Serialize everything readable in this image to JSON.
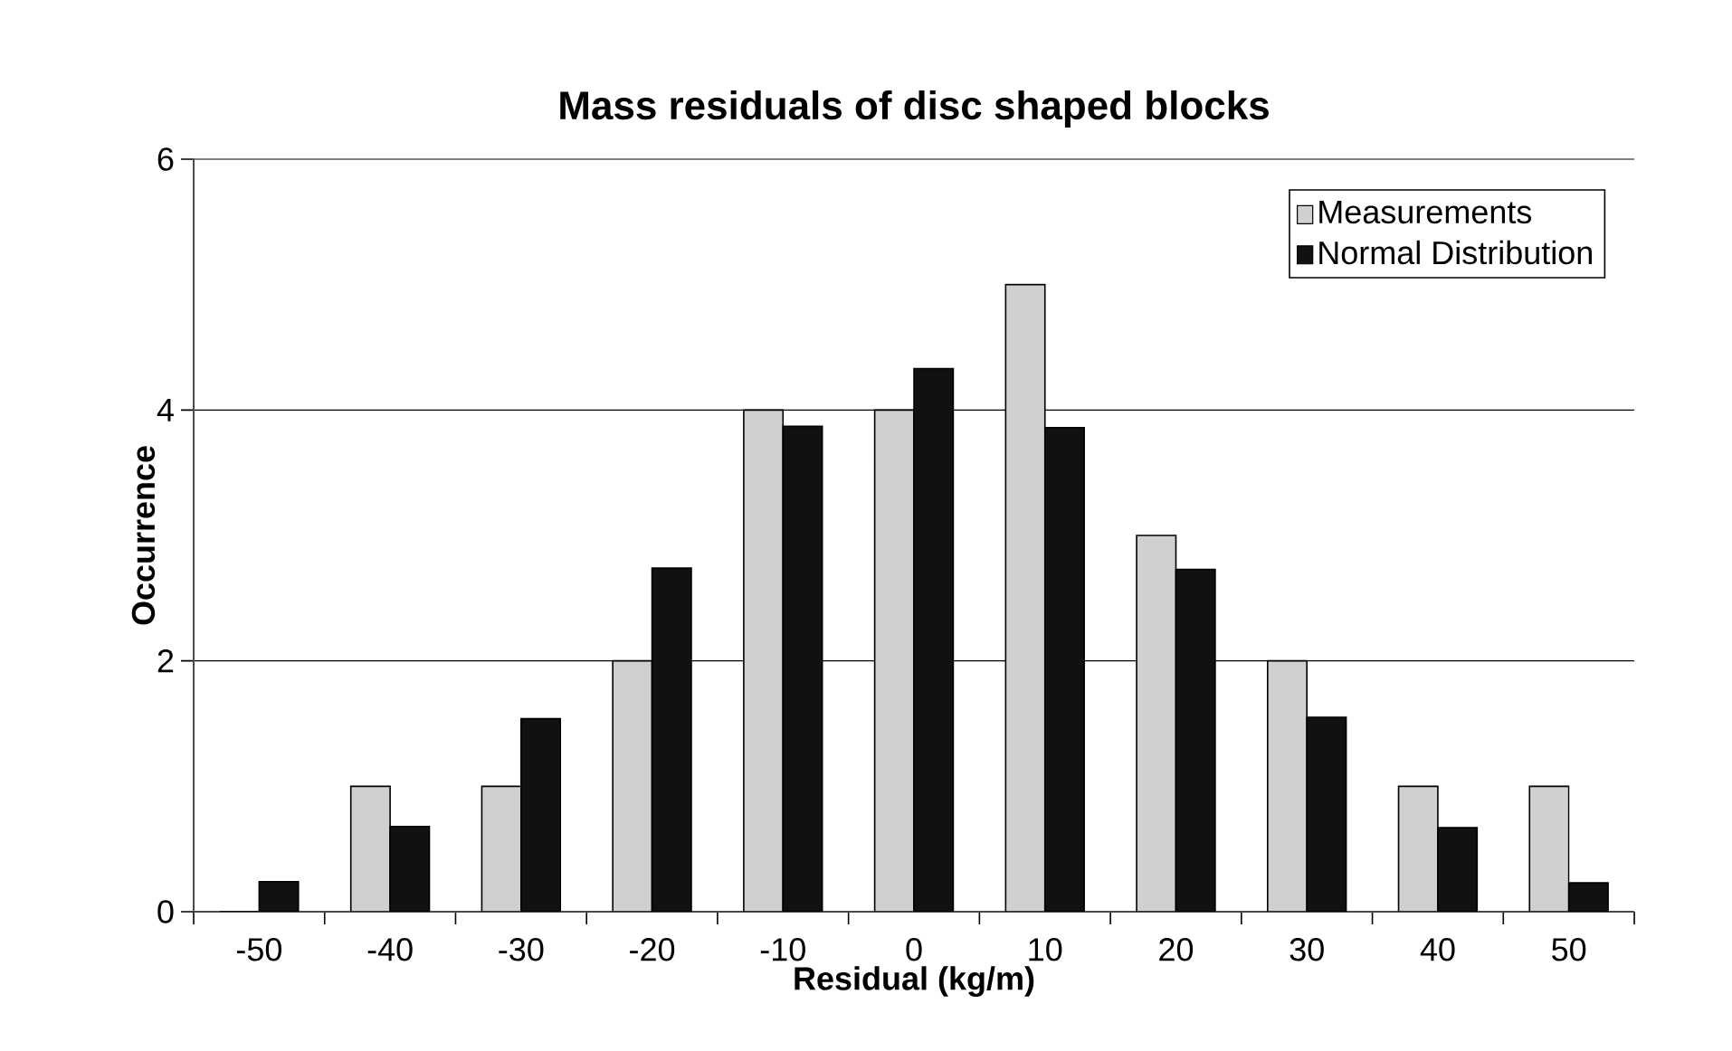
{
  "chart_data": {
    "type": "bar",
    "title": "Mass residuals of disc shaped blocks",
    "xlabel": "Residual (kg/m)",
    "ylabel": "Occurrence",
    "categories": [
      "-50",
      "-40",
      "-30",
      "-20",
      "-10",
      "0",
      "10",
      "20",
      "30",
      "40",
      "50"
    ],
    "series": [
      {
        "name": "Measurements",
        "color": "#d0d0d0",
        "values": [
          0,
          1,
          1,
          2,
          4,
          4,
          5,
          3,
          2,
          1,
          1
        ]
      },
      {
        "name": "Normal Distribution",
        "color": "#111111",
        "values": [
          0.24,
          0.68,
          1.54,
          2.74,
          3.87,
          4.33,
          3.86,
          2.73,
          1.55,
          0.67,
          0.23
        ]
      }
    ],
    "ylim": [
      0,
      6
    ],
    "yticks": [
      0,
      2,
      4,
      6
    ],
    "grid": "y",
    "legend": "top right"
  }
}
